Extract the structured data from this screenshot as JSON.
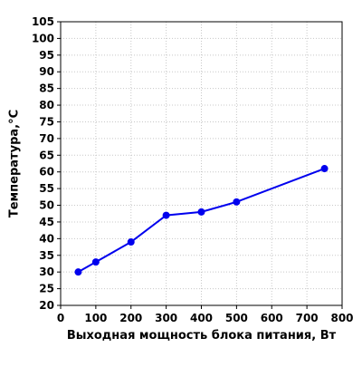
{
  "chart_data": {
    "type": "line",
    "title": "",
    "xlabel": "Выходная мощность блока питания, Вт",
    "ylabel": "Температура,°С",
    "xlim": [
      0,
      800
    ],
    "ylim": [
      20,
      105
    ],
    "x_ticks": [
      0,
      100,
      200,
      300,
      400,
      500,
      600,
      700,
      800
    ],
    "y_ticks": [
      20,
      25,
      30,
      35,
      40,
      45,
      50,
      55,
      60,
      65,
      70,
      75,
      80,
      85,
      90,
      95,
      100,
      105
    ],
    "grid": true,
    "legend": "none",
    "series": [
      {
        "color": "#0000ee",
        "x": [
          50,
          100,
          200,
          300,
          400,
          500,
          750
        ],
        "y": [
          30,
          33,
          39,
          47,
          48,
          51,
          61
        ]
      }
    ]
  }
}
